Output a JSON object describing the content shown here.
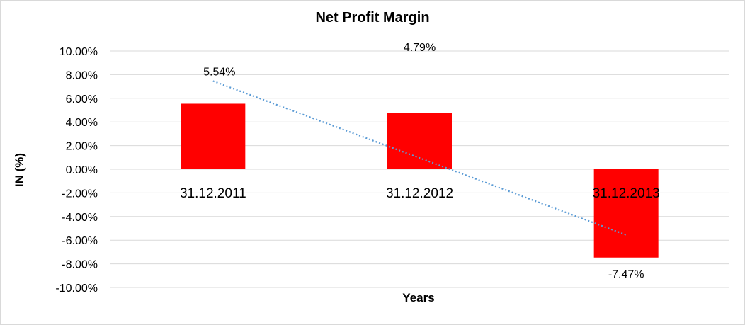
{
  "chart_data": {
    "type": "bar",
    "title": "Net Profit Margin",
    "xlabel": "Years",
    "ylabel": "IN (%)",
    "categories": [
      "31.12.2011",
      "31.12.2012",
      "31.12.2013"
    ],
    "series": [
      {
        "values": [
          5.54,
          4.79,
          -7.47
        ],
        "color": "#ff0000"
      }
    ],
    "data_labels": [
      "5.54%",
      "4.79%",
      "-7.47%"
    ],
    "y_ticks": [
      "10.00%",
      "8.00%",
      "6.00%",
      "4.00%",
      "2.00%",
      "0.00%",
      "-2.00%",
      "-4.00%",
      "-6.00%",
      "-8.00%",
      "-10.00%"
    ],
    "ylim": [
      -10,
      10
    ],
    "grid": true,
    "legend": "none",
    "trendline": {
      "type": "linear",
      "style": "dotted",
      "color": "#5b9bd5"
    }
  }
}
